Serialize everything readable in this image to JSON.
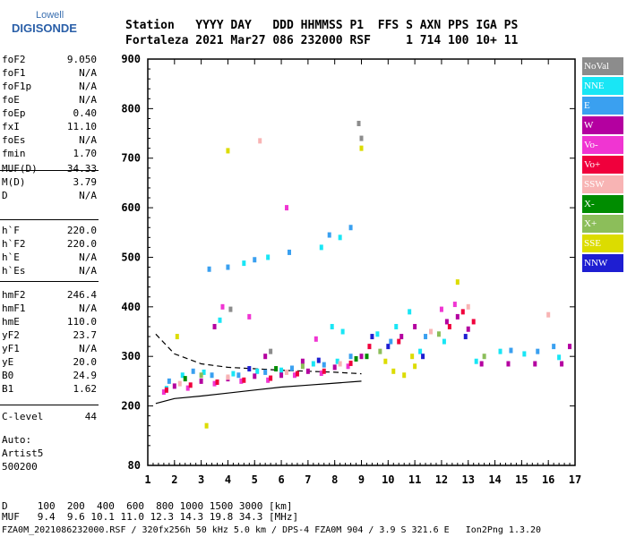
{
  "logo": {
    "line1": "Lowell",
    "line2": "DIGISONDE"
  },
  "header": {
    "line1": "Station   YYYY DAY   DDD HHMMSS P1  FFS S AXN PPS IGA PS",
    "line2": "Fortaleza 2021 Mar27 086 232000 RSF     1 714 100 10+ 11"
  },
  "params": {
    "group1": [
      {
        "k": "foF2",
        "v": "9.050"
      },
      {
        "k": "foF1",
        "v": "N/A"
      },
      {
        "k": "foF1p",
        "v": "N/A"
      },
      {
        "k": "foE",
        "v": "N/A"
      },
      {
        "k": "foEp",
        "v": "0.40"
      },
      {
        "k": "fxI",
        "v": "11.10"
      },
      {
        "k": "foEs",
        "v": "N/A"
      },
      {
        "k": "fmin",
        "v": "1.70"
      }
    ],
    "group2": [
      {
        "k": "MUF(D)",
        "v": "34.33"
      },
      {
        "k": "M(D)",
        "v": "3.79"
      },
      {
        "k": "D",
        "v": "N/A"
      }
    ],
    "group3": [
      {
        "k": "h`F",
        "v": "220.0"
      },
      {
        "k": "h`F2",
        "v": "220.0"
      },
      {
        "k": "h`E",
        "v": "N/A"
      },
      {
        "k": "h`Es",
        "v": "N/A"
      }
    ],
    "group4": [
      {
        "k": "hmF2",
        "v": "246.4"
      },
      {
        "k": "hmF1",
        "v": "N/A"
      },
      {
        "k": "hmE",
        "v": "110.0"
      },
      {
        "k": "yF2",
        "v": "23.7"
      },
      {
        "k": "yF1",
        "v": "N/A"
      },
      {
        "k": "yE",
        "v": "20.0"
      },
      {
        "k": "B0",
        "v": "24.9"
      },
      {
        "k": "B1",
        "v": "1.62"
      }
    ],
    "group5": [
      {
        "k": "C-level",
        "v": "44"
      }
    ]
  },
  "auto": {
    "line1": "Auto:",
    "line2": "Artist5",
    "line3": "500200"
  },
  "footer": {
    "line1": "D     100  200  400  600  800 1000 1500 3000 [km]",
    "line2": "MUF   9.4  9.6 10.1 11.0 12.3 14.3 19.8 34.3 [MHz]",
    "line3": "FZA0M_2021086232000.RSF / 320fx256h 50 kHz 5.0 km / DPS-4 FZA0M 904 / 3.9 S 321.6 E   Ion2Png 1.3.20"
  },
  "legend": [
    {
      "label": "NoVal",
      "color": "#8c8c8c"
    },
    {
      "label": "NNE",
      "color": "#19e6f5"
    },
    {
      "label": "E",
      "color": "#3aa0f0"
    },
    {
      "label": "W",
      "color": "#b400a0"
    },
    {
      "label": "Vo-",
      "color": "#f035d2"
    },
    {
      "label": "Vo+",
      "color": "#f0003c"
    },
    {
      "label": "SSW",
      "color": "#f8b4b4"
    },
    {
      "label": "X-",
      "color": "#008c00"
    },
    {
      "label": "X+",
      "color": "#8cbe5a"
    },
    {
      "label": "SSE",
      "color": "#dcdc00"
    },
    {
      "label": "NNW",
      "color": "#1e1ed2"
    }
  ],
  "chart_data": {
    "type": "scatter",
    "xlabel": "",
    "ylabel": "",
    "xlim": [
      1,
      17
    ],
    "ylim": [
      80,
      900
    ],
    "xticks": [
      "1",
      "2",
      "3",
      "4",
      "5",
      "6",
      "7",
      "8",
      "9",
      "10",
      "11",
      "12",
      "13",
      "14",
      "15",
      "16",
      "17"
    ],
    "yticks": [
      "80",
      "200",
      "300",
      "400",
      "500",
      "600",
      "700",
      "800",
      "900"
    ],
    "series": [
      {
        "name": "NNE",
        "color": "#19e6f5",
        "points": [
          [
            1.7,
            235
          ],
          [
            2.3,
            262
          ],
          [
            3.1,
            268
          ],
          [
            4.2,
            265
          ],
          [
            5.1,
            270
          ],
          [
            6.0,
            272
          ],
          [
            7.2,
            285
          ],
          [
            8.1,
            290
          ],
          [
            9.6,
            345
          ],
          [
            10.3,
            360
          ],
          [
            10.8,
            390
          ],
          [
            11.2,
            310
          ],
          [
            12.1,
            330
          ],
          [
            13.3,
            290
          ],
          [
            14.2,
            310
          ],
          [
            15.1,
            305
          ],
          [
            16.4,
            298
          ],
          [
            4.6,
            488
          ],
          [
            5.5,
            500
          ],
          [
            7.5,
            520
          ],
          [
            8.2,
            540
          ],
          [
            3.7,
            373
          ],
          [
            7.9,
            360
          ],
          [
            8.3,
            350
          ]
        ]
      },
      {
        "name": "E",
        "color": "#3aa0f0",
        "points": [
          [
            1.8,
            250
          ],
          [
            2.7,
            270
          ],
          [
            3.4,
            262
          ],
          [
            4.4,
            262
          ],
          [
            5.4,
            268
          ],
          [
            6.4,
            276
          ],
          [
            7.6,
            283
          ],
          [
            8.6,
            300
          ],
          [
            10.1,
            330
          ],
          [
            11.4,
            340
          ],
          [
            14.6,
            312
          ],
          [
            16.2,
            320
          ],
          [
            3.3,
            476
          ],
          [
            4.0,
            480
          ],
          [
            5.0,
            495
          ],
          [
            6.3,
            510
          ],
          [
            7.8,
            545
          ],
          [
            8.6,
            560
          ],
          [
            15.6,
            310
          ]
        ]
      },
      {
        "name": "W",
        "color": "#b400a0",
        "points": [
          [
            2.0,
            240
          ],
          [
            3.0,
            250
          ],
          [
            4.0,
            255
          ],
          [
            5.0,
            260
          ],
          [
            6.0,
            262
          ],
          [
            7.0,
            270
          ],
          [
            8.0,
            278
          ],
          [
            9.0,
            300
          ],
          [
            10.5,
            340
          ],
          [
            11.0,
            360
          ],
          [
            12.2,
            370
          ],
          [
            12.6,
            380
          ],
          [
            13.0,
            355
          ],
          [
            13.5,
            285
          ],
          [
            14.5,
            285
          ],
          [
            15.5,
            285
          ],
          [
            16.5,
            285
          ],
          [
            16.8,
            320
          ],
          [
            3.5,
            360
          ],
          [
            5.4,
            300
          ],
          [
            6.8,
            290
          ]
        ]
      },
      {
        "name": "Vo-",
        "color": "#f035d2",
        "points": [
          [
            1.6,
            228
          ],
          [
            2.5,
            236
          ],
          [
            3.5,
            245
          ],
          [
            4.5,
            250
          ],
          [
            5.5,
            252
          ],
          [
            6.5,
            262
          ],
          [
            7.5,
            266
          ],
          [
            8.5,
            280
          ],
          [
            12.0,
            395
          ],
          [
            12.5,
            405
          ],
          [
            3.8,
            400
          ],
          [
            4.8,
            380
          ],
          [
            6.2,
            600
          ],
          [
            7.3,
            335
          ]
        ]
      },
      {
        "name": "Vo+",
        "color": "#f0003c",
        "points": [
          [
            1.7,
            232
          ],
          [
            2.6,
            242
          ],
          [
            3.6,
            248
          ],
          [
            4.6,
            252
          ],
          [
            5.6,
            256
          ],
          [
            6.6,
            265
          ],
          [
            7.6,
            270
          ],
          [
            8.6,
            286
          ],
          [
            9.3,
            320
          ],
          [
            10.4,
            330
          ],
          [
            12.3,
            360
          ],
          [
            12.8,
            390
          ],
          [
            13.2,
            370
          ]
        ]
      },
      {
        "name": "SSW",
        "color": "#f8b4b4",
        "points": [
          [
            2.2,
            245
          ],
          [
            4.0,
            258
          ],
          [
            6.2,
            268
          ],
          [
            8.2,
            285
          ],
          [
            11.6,
            350
          ],
          [
            13.0,
            400
          ],
          [
            16.0,
            384
          ],
          [
            5.2,
            735
          ]
        ]
      },
      {
        "name": "X-",
        "color": "#008c00",
        "points": [
          [
            2.4,
            255
          ],
          [
            5.8,
            275
          ],
          [
            8.8,
            295
          ],
          [
            9.2,
            300
          ]
        ]
      },
      {
        "name": "X+",
        "color": "#8cbe5a",
        "points": [
          [
            3.0,
            262
          ],
          [
            6.8,
            280
          ],
          [
            9.7,
            310
          ],
          [
            11.9,
            345
          ],
          [
            13.6,
            300
          ]
        ]
      },
      {
        "name": "SSE",
        "color": "#dcdc00",
        "points": [
          [
            9.9,
            290
          ],
          [
            10.2,
            270
          ],
          [
            10.6,
            262
          ],
          [
            11.0,
            280
          ],
          [
            10.9,
            300
          ],
          [
            9.0,
            720
          ],
          [
            4.0,
            715
          ],
          [
            12.6,
            450
          ],
          [
            3.2,
            160
          ],
          [
            2.1,
            340
          ]
        ]
      },
      {
        "name": "NNW",
        "color": "#1e1ed2",
        "points": [
          [
            4.8,
            275
          ],
          [
            7.4,
            292
          ],
          [
            9.4,
            340
          ],
          [
            10.0,
            320
          ],
          [
            11.3,
            300
          ],
          [
            12.9,
            340
          ]
        ]
      },
      {
        "name": "NoVal",
        "color": "#8c8c8c",
        "points": [
          [
            4.1,
            395
          ],
          [
            8.9,
            770
          ],
          [
            9.0,
            740
          ],
          [
            5.6,
            310
          ]
        ]
      }
    ],
    "curves": [
      {
        "style": "dashed",
        "points": [
          [
            1.3,
            345
          ],
          [
            2,
            305
          ],
          [
            3,
            285
          ],
          [
            4,
            278
          ],
          [
            5,
            275
          ],
          [
            6,
            272
          ],
          [
            7,
            270
          ],
          [
            8,
            268
          ],
          [
            9,
            265
          ]
        ]
      },
      {
        "style": "solid",
        "points": [
          [
            1.3,
            205
          ],
          [
            2,
            215
          ],
          [
            3,
            220
          ],
          [
            4,
            226
          ],
          [
            5,
            232
          ],
          [
            6,
            238
          ],
          [
            7,
            242
          ],
          [
            8,
            246
          ],
          [
            9,
            250
          ]
        ]
      }
    ]
  }
}
